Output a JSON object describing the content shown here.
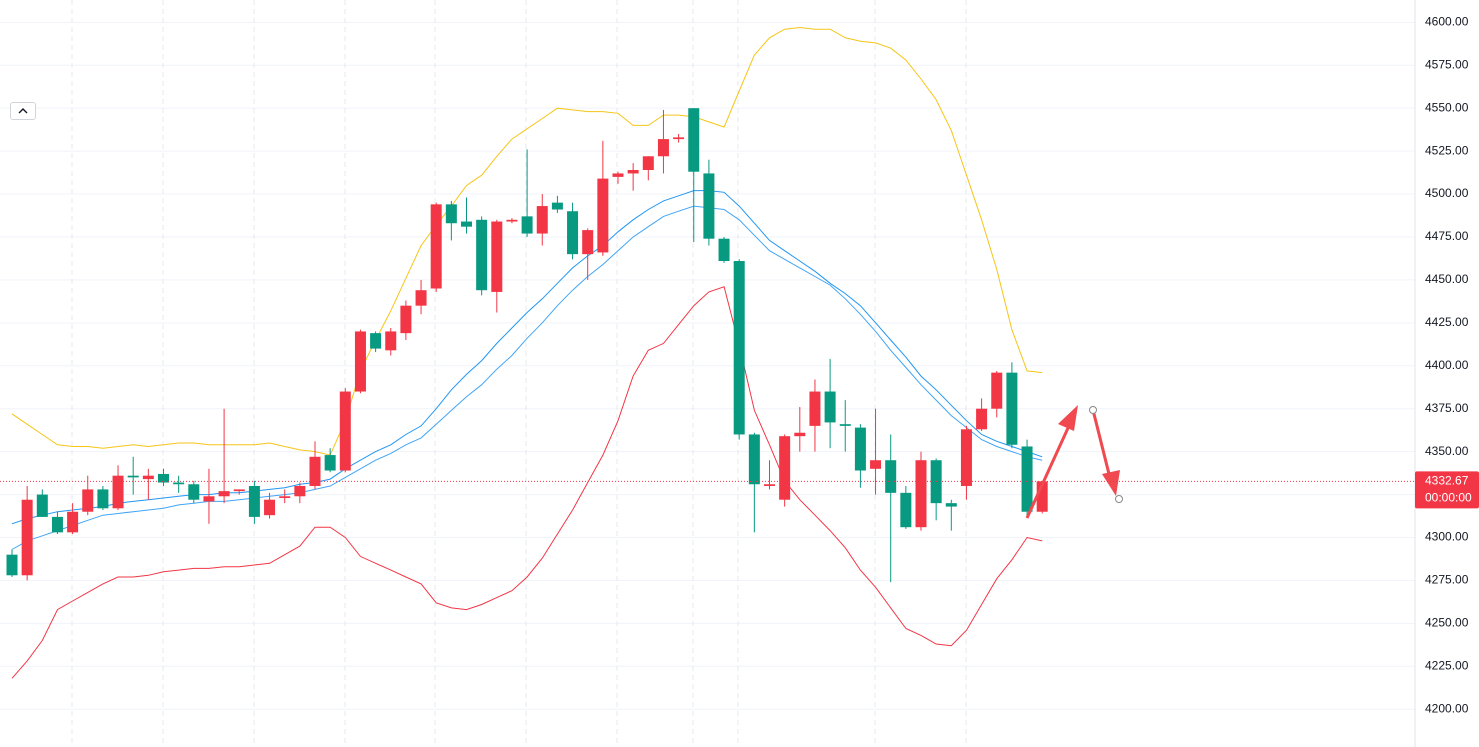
{
  "chart_data": {
    "type": "candlestick",
    "up_color": "#f23645",
    "down_color": "#089981",
    "ylim": [
      4178,
      4613
    ],
    "yticks": [
      {
        "value": 4200,
        "label": "4200.00"
      },
      {
        "value": 4225,
        "label": "4225.00"
      },
      {
        "value": 4250,
        "label": "4250.00"
      },
      {
        "value": 4275,
        "label": "4275.00"
      },
      {
        "value": 4300,
        "label": "4300.00"
      },
      {
        "value": 4325,
        "label": "4325.00"
      },
      {
        "value": 4350,
        "label": "4350.00"
      },
      {
        "value": 4375,
        "label": "4375.00"
      },
      {
        "value": 4400,
        "label": "4400.00"
      },
      {
        "value": 4425,
        "label": "4425.00"
      },
      {
        "value": 4450,
        "label": "4450.00"
      },
      {
        "value": 4475,
        "label": "4475.00"
      },
      {
        "value": 4500,
        "label": "4500.00"
      },
      {
        "value": 4525,
        "label": "4525.00"
      },
      {
        "value": 4550,
        "label": "4550.00"
      },
      {
        "value": 4575,
        "label": "4575.00"
      },
      {
        "value": 4600,
        "label": "4600.00"
      }
    ],
    "grid": true,
    "open": [
      4290,
      4278,
      4325,
      4312,
      4303,
      4315,
      4328,
      4317,
      4336,
      4334,
      4337,
      4332,
      4331,
      4321,
      4324,
      4327,
      4330,
      4313,
      4323,
      4324,
      4330,
      4348,
      4339,
      4385,
      4419,
      4409,
      4419,
      4435,
      4445,
      4494,
      4484,
      4485,
      4443,
      4484,
      4487,
      4477,
      4495,
      4490,
      4465,
      4466,
      4510,
      4512,
      4514,
      4522,
      4532,
      4550,
      4512,
      4474,
      4461,
      4360,
      4330,
      4322,
      4359,
      4365,
      4385,
      4366,
      4364,
      4340,
      4345,
      4326,
      4306,
      4345,
      4320,
      4330,
      4363,
      4375,
      4396,
      4353,
      4315
    ],
    "high": [
      4293,
      4330,
      4328,
      4315,
      4320,
      4336,
      4330,
      4342,
      4347,
      4340,
      4340,
      4336,
      4333,
      4340,
      4375,
      4328,
      4333,
      4326,
      4328,
      4332,
      4356,
      4352,
      4387,
      4421,
      4420,
      4422,
      4438,
      4450,
      4495,
      4496,
      4498,
      4487,
      4485,
      4486,
      4526,
      4500,
      4499,
      4495,
      4480,
      4531,
      4513,
      4518,
      4522,
      4549,
      4535,
      4550,
      4520,
      4475,
      4462,
      4361,
      4345,
      4360,
      4376,
      4392,
      4404,
      4380,
      4366,
      4375,
      4360,
      4330,
      4350,
      4346,
      4322,
      4365,
      4381,
      4397,
      4402,
      4357,
      4332.67
    ],
    "low": [
      4277,
      4275,
      4312,
      4302,
      4302,
      4313,
      4316,
      4316,
      4325,
      4322,
      4330,
      4326,
      4320,
      4308,
      4320,
      4325,
      4308,
      4311,
      4320,
      4320,
      4328,
      4338,
      4338,
      4384,
      4408,
      4406,
      4415,
      4430,
      4443,
      4473,
      4477,
      4441,
      4431,
      4483,
      4475,
      4470,
      4489,
      4462,
      4450,
      4464,
      4506,
      4502,
      4508,
      4512,
      4530,
      4472,
      4470,
      4460,
      4357,
      4303,
      4328,
      4318,
      4350,
      4350,
      4352,
      4350,
      4329,
      4325,
      4274,
      4305,
      4304,
      4310,
      4304,
      4322,
      4362,
      4370,
      4352,
      4313,
      4314
    ],
    "close": [
      4278,
      4322,
      4312,
      4303,
      4315,
      4328,
      4317,
      4336,
      4335,
      4336,
      4332,
      4331,
      4322,
      4324,
      4327,
      4328,
      4312,
      4322,
      4324,
      4330,
      4347,
      4339,
      4385,
      4420,
      4410,
      4420,
      4435,
      4444,
      4494,
      4483,
      4481,
      4444,
      4484,
      4485,
      4477,
      4493,
      4491,
      4465,
      4479,
      4509,
      4512,
      4514,
      4522,
      4532,
      4533,
      4513,
      4474,
      4461,
      4360,
      4331,
      4331,
      4359,
      4361,
      4385,
      4367,
      4365,
      4339,
      4345,
      4326,
      4306,
      4345,
      4320,
      4318,
      4363,
      4375,
      4396,
      4354,
      4315,
      4332.67
    ],
    "countdown": "00:00:00",
    "overlays": [
      {
        "color": "#f5c518",
        "values": [
          4372,
          4366,
          4360,
          4354,
          4353,
          4353,
          4352,
          4353,
          4354,
          4353,
          4354,
          4355,
          4355,
          4354,
          4354,
          4354,
          4354,
          4355,
          4353,
          4351,
          4350,
          4348,
          4368,
          4397,
          4415,
          4432,
          4451,
          4470,
          4482,
          4493,
          4505,
          4511,
          4522,
          4532,
          4538,
          4544,
          4550,
          4549,
          4548,
          4548,
          4547,
          4540,
          4540,
          4546,
          4546,
          4545,
          4542,
          4539,
          4560,
          4581,
          4591,
          4596,
          4597,
          4596,
          4596,
          4591,
          4589,
          4588,
          4585,
          4578,
          4567,
          4555,
          4537,
          4511,
          4485,
          4456,
          4421,
          4397,
          4396
        ]
      },
      {
        "color": "#f23645",
        "values": [
          4218,
          4228,
          4240,
          4258,
          4263,
          4268,
          4273,
          4277,
          4277,
          4278,
          4280,
          4281,
          4282,
          4282,
          4283,
          4283,
          4284,
          4285,
          4290,
          4295,
          4306,
          4306,
          4300,
          4289,
          4285,
          4281,
          4277,
          4273,
          4262,
          4259,
          4258,
          4261,
          4265,
          4269,
          4277,
          4288,
          4302,
          4316,
          4332,
          4348,
          4368,
          4394,
          4409,
          4413,
          4424,
          4435,
          4443,
          4446,
          4412,
          4374,
          4354,
          4333,
          4322,
          4313,
          4304,
          4294,
          4281,
          4271,
          4259,
          4247,
          4243,
          4238,
          4237,
          4246,
          4261,
          4276,
          4287,
          4300,
          4298
        ]
      },
      {
        "color": "#2196f3",
        "values": [
          4308,
          4311,
          4313,
          4315,
          4316,
          4317,
          4318,
          4320,
          4321,
          4322,
          4323,
          4324,
          4325,
          4325,
          4326,
          4326,
          4327,
          4328,
          4329,
          4331,
          4332,
          4334,
          4340,
          4345,
          4350,
          4354,
          4360,
          4365,
          4375,
          4386,
          4395,
          4403,
          4413,
          4422,
          4431,
          4439,
          4448,
          4457,
          4464,
          4470,
          4478,
          4485,
          4491,
          4496,
          4499,
          4502,
          4502,
          4501,
          4493,
          4483,
          4473,
          4467,
          4461,
          4455,
          4448,
          4442,
          4435,
          4425,
          4415,
          4405,
          4394,
          4386,
          4377,
          4368,
          4360,
          4356,
          4353,
          4350,
          4347
        ]
      },
      {
        "color": "#42a5f5",
        "values": [
          4293,
          4298,
          4301,
          4304,
          4307,
          4310,
          4313,
          4314,
          4315,
          4316,
          4317,
          4319,
          4320,
          4321,
          4321,
          4322,
          4323,
          4324,
          4325,
          4326,
          4328,
          4330,
          4335,
          4340,
          4345,
          4349,
          4354,
          4358,
          4366,
          4374,
          4382,
          4389,
          4398,
          4406,
          4416,
          4425,
          4435,
          4444,
          4452,
          4459,
          4467,
          4475,
          4481,
          4487,
          4490,
          4493,
          4492,
          4491,
          4485,
          4476,
          4467,
          4462,
          4457,
          4452,
          4447,
          4439,
          4430,
          4420,
          4409,
          4399,
          4389,
          4380,
          4371,
          4364,
          4357,
          4353,
          4350,
          4347,
          4345
        ]
      }
    ]
  }
}
